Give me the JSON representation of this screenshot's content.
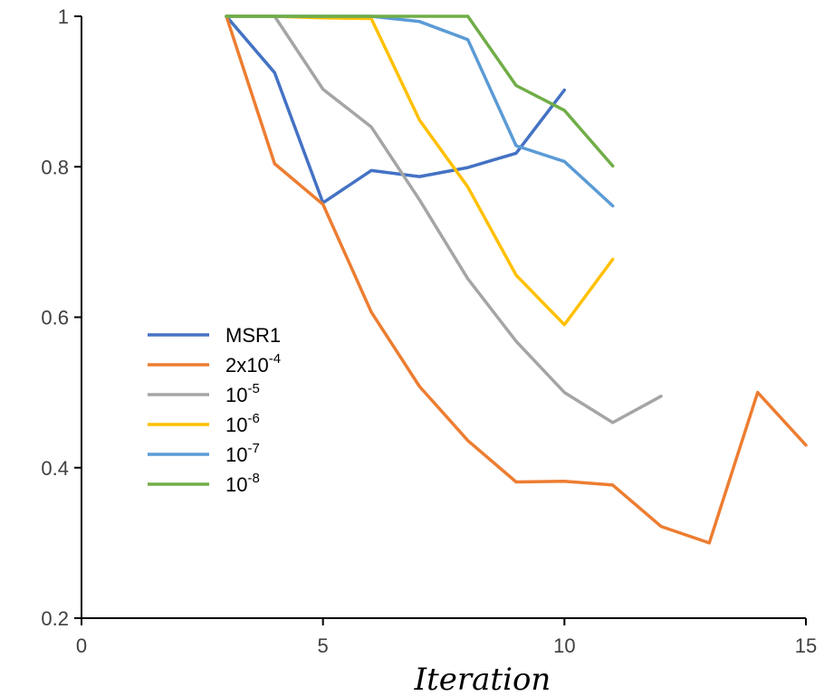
{
  "chart_data": {
    "type": "line",
    "title": "",
    "xlabel": "Iteration",
    "ylabel": "",
    "xlim": [
      0,
      15
    ],
    "ylim": [
      0.2,
      1
    ],
    "xticks": [
      0,
      5,
      10,
      15
    ],
    "yticks": [
      0.2,
      0.4,
      0.6,
      0.8,
      1
    ],
    "x_tick_labels": [
      "0",
      "5",
      "10",
      "15"
    ],
    "y_tick_labels": [
      "0.2",
      "0.4",
      "0.6",
      "0.8",
      "1"
    ],
    "grid": false,
    "legend_position": "center-left",
    "series": [
      {
        "name": "MSR1",
        "label_base": "MSR1",
        "label_sup": "",
        "color": "#4472c4",
        "x": [
          3,
          4,
          5,
          6,
          7,
          8,
          9,
          10
        ],
        "y": [
          1.0,
          0.925,
          0.752,
          0.795,
          0.787,
          0.799,
          0.818,
          0.902
        ]
      },
      {
        "name": "2x10^-4",
        "label_base": "2x10",
        "label_sup": "-4",
        "color": "#ed7d31",
        "x": [
          3,
          4,
          5,
          6,
          7,
          8,
          9,
          10,
          11,
          12,
          13,
          14,
          15
        ],
        "y": [
          1.0,
          0.804,
          0.75,
          0.607,
          0.508,
          0.436,
          0.381,
          0.382,
          0.377,
          0.322,
          0.3,
          0.5,
          0.43
        ]
      },
      {
        "name": "10^-5",
        "label_base": "10",
        "label_sup": "-5",
        "color": "#a5a5a5",
        "x": [
          3,
          4,
          5,
          6,
          7,
          8,
          9,
          10,
          11,
          12
        ],
        "y": [
          1.0,
          1.0,
          0.903,
          0.853,
          0.756,
          0.651,
          0.568,
          0.5,
          0.46,
          0.495
        ]
      },
      {
        "name": "10^-6",
        "label_base": "10",
        "label_sup": "-6",
        "color": "#ffc000",
        "x": [
          3,
          4,
          5,
          6,
          7,
          8,
          9,
          10,
          11
        ],
        "y": [
          1.0,
          1.0,
          0.998,
          0.997,
          0.862,
          0.773,
          0.656,
          0.59,
          0.677
        ]
      },
      {
        "name": "10^-7",
        "label_base": "10",
        "label_sup": "-7",
        "color": "#5b9bd5",
        "x": [
          3,
          4,
          5,
          6,
          7,
          8,
          9,
          10,
          11
        ],
        "y": [
          1.0,
          1.0,
          1.0,
          1.0,
          0.993,
          0.969,
          0.828,
          0.807,
          0.748
        ]
      },
      {
        "name": "10^-8",
        "label_base": "10",
        "label_sup": "-8",
        "color": "#70ad47",
        "x": [
          3,
          4,
          5,
          6,
          7,
          8,
          9,
          10,
          11
        ],
        "y": [
          1.0,
          1.0,
          1.0,
          1.0,
          1.0,
          1.0,
          0.908,
          0.875,
          0.801
        ]
      }
    ]
  }
}
